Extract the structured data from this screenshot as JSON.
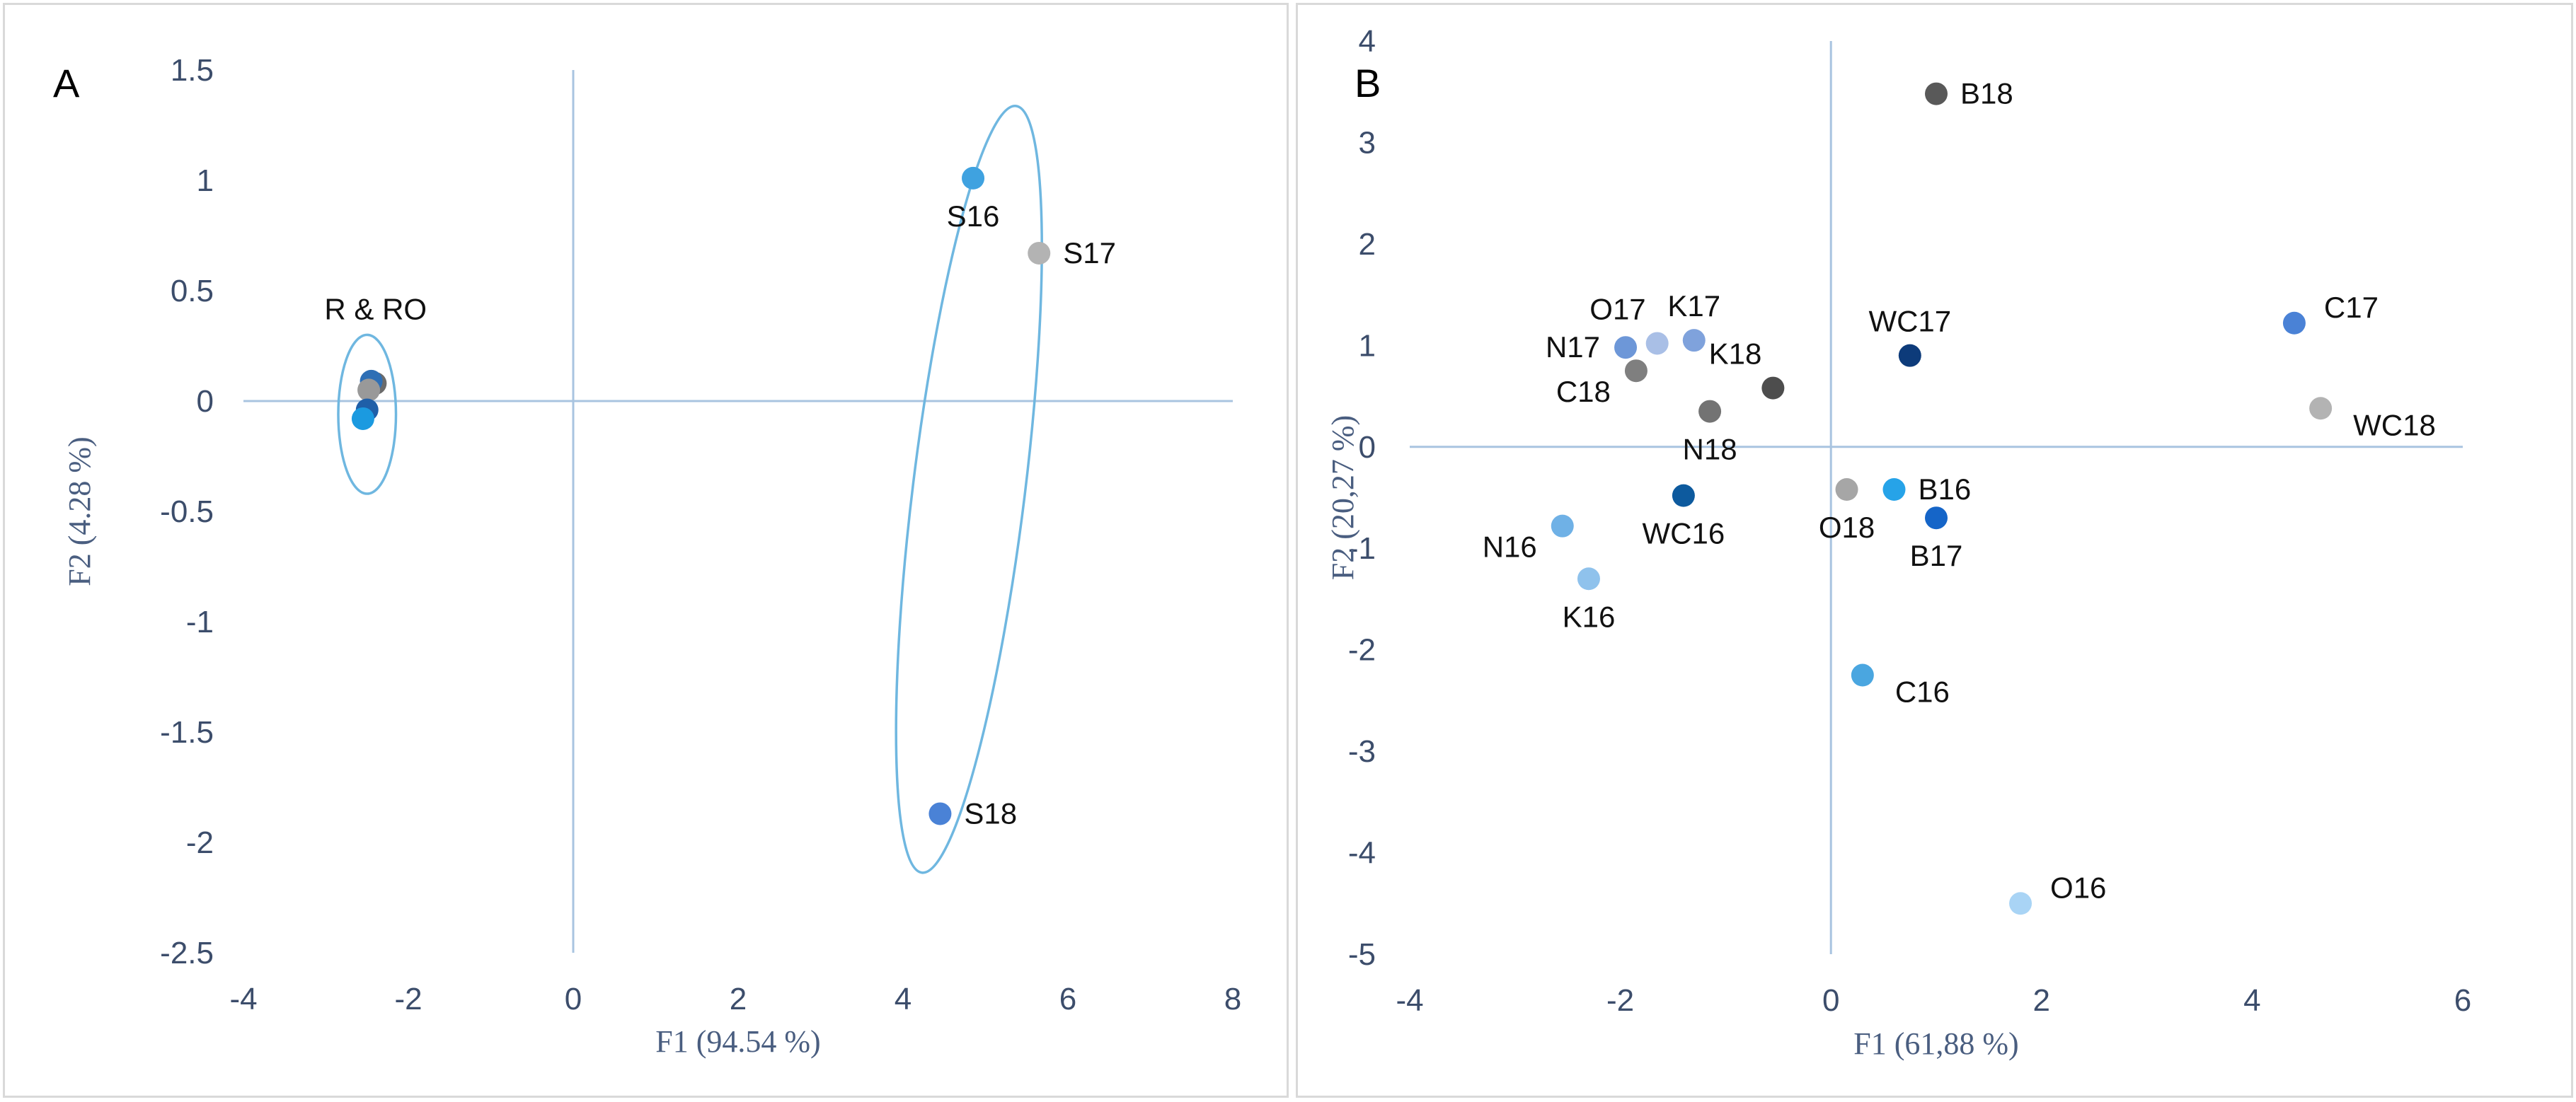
{
  "chart_data": [
    {
      "panel": "A",
      "type": "scatter",
      "xlabel": "F1 (94.54 %)",
      "ylabel": "F2 (4.28 %)",
      "xlim": [
        -4,
        8
      ],
      "ylim": [
        -2.5,
        1.5
      ],
      "xticks": [
        -4,
        -2,
        0,
        2,
        4,
        6,
        8
      ],
      "yticks": [
        1.5,
        1,
        0.5,
        0,
        -0.5,
        -1,
        -1.5,
        -2,
        -2.5
      ],
      "points": [
        {
          "label": "S16",
          "x": 4.85,
          "y": 1.01,
          "color": "#3fa2e0",
          "label_pos": "below"
        },
        {
          "label": "S17",
          "x": 5.65,
          "y": 0.67,
          "color": "#b3b3b3",
          "label_pos": "right"
        },
        {
          "label": "S18",
          "x": 4.45,
          "y": -1.87,
          "color": "#4a82d6",
          "label_pos": "right"
        },
        {
          "label": "",
          "x": -2.4,
          "y": 0.08,
          "color": "#6b6b6b"
        },
        {
          "label": "",
          "x": -2.45,
          "y": 0.09,
          "color": "#2e6fb5"
        },
        {
          "label": "",
          "x": -2.48,
          "y": 0.05,
          "color": "#999999"
        },
        {
          "label": "",
          "x": -2.5,
          "y": -0.04,
          "color": "#1f5fa8"
        },
        {
          "label": "",
          "x": -2.55,
          "y": -0.08,
          "color": "#1b9ae0"
        }
      ],
      "ellipses": [
        {
          "label": "R & RO",
          "cx": -2.5,
          "cy": -0.06,
          "rx": 0.35,
          "ry": 0.36
        },
        {
          "label": "",
          "cx": 4.8,
          "cy": -0.4,
          "rx": 0.68,
          "ry": 1.75,
          "rotate": 7
        }
      ]
    },
    {
      "panel": "B",
      "type": "scatter",
      "xlabel": "F1 (61,88 %)",
      "ylabel": "F2 (20,27 %)",
      "xlim": [
        -4,
        6
      ],
      "ylim": [
        -5,
        4
      ],
      "xticks": [
        -4,
        -2,
        0,
        2,
        4,
        6
      ],
      "yticks": [
        4,
        3,
        2,
        1,
        0,
        -1,
        -2,
        -3,
        -4,
        -5
      ],
      "points": [
        {
          "label": "B18",
          "x": 1.0,
          "y": 3.48,
          "color": "#595959",
          "label_pos": "right"
        },
        {
          "label": "C17",
          "x": 4.4,
          "y": 1.22,
          "color": "#4a82d6",
          "label_pos": "right-up"
        },
        {
          "label": "WC18",
          "x": 4.65,
          "y": 0.38,
          "color": "#b3b3b3",
          "label_pos": "right-down"
        },
        {
          "label": "WC17",
          "x": 0.75,
          "y": 0.9,
          "color": "#0d3b7a",
          "label_pos": "above"
        },
        {
          "label": "K18",
          "x": -0.55,
          "y": 0.58,
          "color": "#4d4d4d",
          "label_pos": "above-left"
        },
        {
          "label": "N18",
          "x": -1.15,
          "y": 0.35,
          "color": "#737373",
          "label_pos": "below"
        },
        {
          "label": "K17",
          "x": -1.3,
          "y": 1.05,
          "color": "#7fa2dc",
          "label_pos": "above"
        },
        {
          "label": "O17",
          "x": -1.65,
          "y": 1.02,
          "color": "#a9bfe6",
          "label_pos": "above-left"
        },
        {
          "label": "N17",
          "x": -1.95,
          "y": 0.98,
          "color": "#6d97d8",
          "label_pos": "left"
        },
        {
          "label": "C18",
          "x": -1.85,
          "y": 0.75,
          "color": "#7f7f7f",
          "label_pos": "below-left"
        },
        {
          "label": "WC16",
          "x": -1.4,
          "y": -0.48,
          "color": "#0d5a9e",
          "label_pos": "below"
        },
        {
          "label": "N16",
          "x": -2.55,
          "y": -0.78,
          "color": "#6fb1e6",
          "label_pos": "below-left"
        },
        {
          "label": "K16",
          "x": -2.3,
          "y": -1.3,
          "color": "#8fc2ec",
          "label_pos": "below"
        },
        {
          "label": "O18",
          "x": 0.15,
          "y": -0.42,
          "color": "#a6a6a6",
          "label_pos": "below"
        },
        {
          "label": "B16",
          "x": 0.6,
          "y": -0.42,
          "color": "#26a3e8",
          "label_pos": "right"
        },
        {
          "label": "B17",
          "x": 1.0,
          "y": -0.7,
          "color": "#1565c8",
          "label_pos": "below"
        },
        {
          "label": "C16",
          "x": 0.3,
          "y": -2.25,
          "color": "#4aa6e0",
          "label_pos": "right-down"
        },
        {
          "label": "O16",
          "x": 1.8,
          "y": -4.5,
          "color": "#a9d4f5",
          "label_pos": "right-up"
        }
      ]
    }
  ]
}
